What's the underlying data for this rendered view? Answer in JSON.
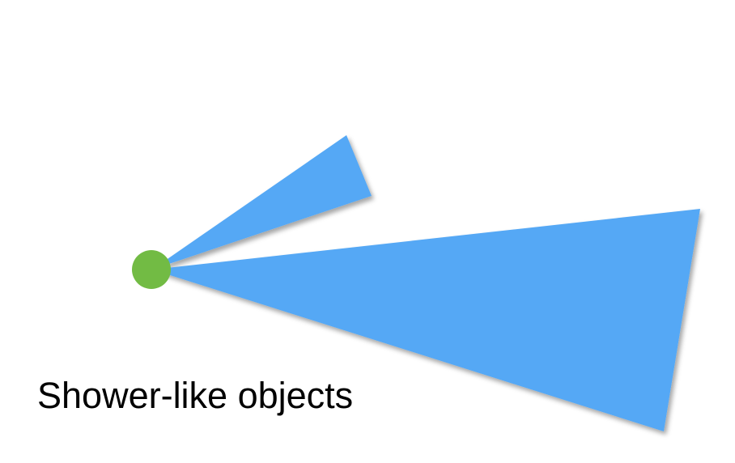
{
  "caption": "Shower-like objects",
  "colors": {
    "shower": "#55a8f5",
    "vertex": "#72bb44",
    "background": "#ffffff",
    "text": "#000000"
  },
  "elements": {
    "vertex": "green-vertex-dot",
    "showers": [
      "small-shower-cone",
      "large-shower-cone"
    ]
  }
}
